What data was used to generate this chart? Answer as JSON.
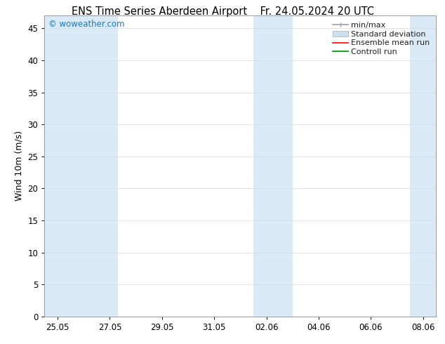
{
  "title_left": "ENS Time Series Aberdeen Airport",
  "title_right": "Fr. 24.05.2024 20 UTC",
  "ylabel": "Wind 10m (m/s)",
  "watermark": "© woweather.com",
  "watermark_color": "#1a7abf",
  "xtick_labels": [
    "25.05",
    "27.05",
    "29.05",
    "31.05",
    "02.06",
    "04.06",
    "06.06",
    "08.06"
  ],
  "xtick_positions": [
    0,
    2,
    4,
    6,
    8,
    10,
    12,
    14
  ],
  "ylim": [
    0,
    47
  ],
  "yticks": [
    0,
    5,
    10,
    15,
    20,
    25,
    30,
    35,
    40,
    45
  ],
  "xlim": [
    -0.5,
    14.5
  ],
  "bg_color": "#ffffff",
  "plot_bg_color": "#ffffff",
  "shaded_bands_color": "#daeaf7",
  "shaded_bands": [
    [
      -0.5,
      1.5
    ],
    [
      1.5,
      2.3
    ],
    [
      7.5,
      9.0
    ],
    [
      13.5,
      14.5
    ]
  ],
  "legend_items": [
    {
      "label": "min/max",
      "color": "#a0a0a0",
      "lw": 1.2,
      "ls": "-",
      "type": "minmax"
    },
    {
      "label": "Standard deviation",
      "color": "#cde0f0",
      "lw": 6,
      "ls": "-",
      "type": "fill"
    },
    {
      "label": "Ensemble mean run",
      "color": "#ff0000",
      "lw": 1.2,
      "ls": "-",
      "type": "line"
    },
    {
      "label": "Controll run",
      "color": "#008800",
      "lw": 1.2,
      "ls": "-",
      "type": "line"
    }
  ],
  "title_fontsize": 10.5,
  "tick_fontsize": 8.5,
  "ylabel_fontsize": 9,
  "legend_fontsize": 8,
  "watermark_fontsize": 8.5
}
